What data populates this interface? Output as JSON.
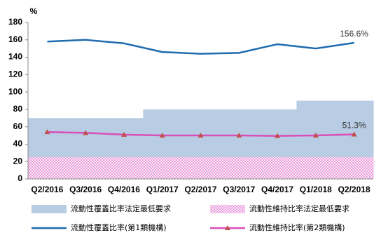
{
  "chart_data": {
    "type": "combo",
    "y_label": "%",
    "categories": [
      "Q2/2016",
      "Q3/2016",
      "Q4/2016",
      "Q1/2017",
      "Q2/2017",
      "Q3/2017",
      "Q4/2017",
      "Q1/2018",
      "Q2/2018"
    ],
    "ylim": [
      0,
      180
    ],
    "yticks": [
      0,
      20,
      40,
      60,
      80,
      100,
      120,
      140,
      160,
      180
    ],
    "grid": false,
    "series": [
      {
        "name": "流動性覆蓋比率法定最低要求",
        "type": "area",
        "color": "#b8cce4",
        "values": [
          70,
          70,
          70,
          80,
          80,
          80,
          80,
          90,
          90
        ]
      },
      {
        "name": "流動性維持比率法定最低要求",
        "type": "hatched-area",
        "color": "#e68ad6",
        "values": [
          25,
          25,
          25,
          25,
          25,
          25,
          25,
          25,
          25
        ]
      },
      {
        "name": "流動性覆蓋比率(第1類機構)",
        "type": "line",
        "color": "#1f6bb0",
        "values": [
          158,
          160,
          156,
          146,
          144,
          145,
          155,
          150,
          156.6
        ],
        "value_labels": [
          null,
          null,
          null,
          null,
          null,
          null,
          null,
          null,
          "156.6%"
        ]
      },
      {
        "name": "流動性維持比率(第2類機構)",
        "type": "line",
        "marker": "triangle",
        "color": "#d94fb8",
        "values": [
          54,
          53,
          51,
          50,
          50,
          50,
          49.5,
          50,
          51.3
        ],
        "value_labels": [
          null,
          null,
          null,
          null,
          null,
          null,
          null,
          null,
          "51.3%"
        ]
      }
    ]
  }
}
